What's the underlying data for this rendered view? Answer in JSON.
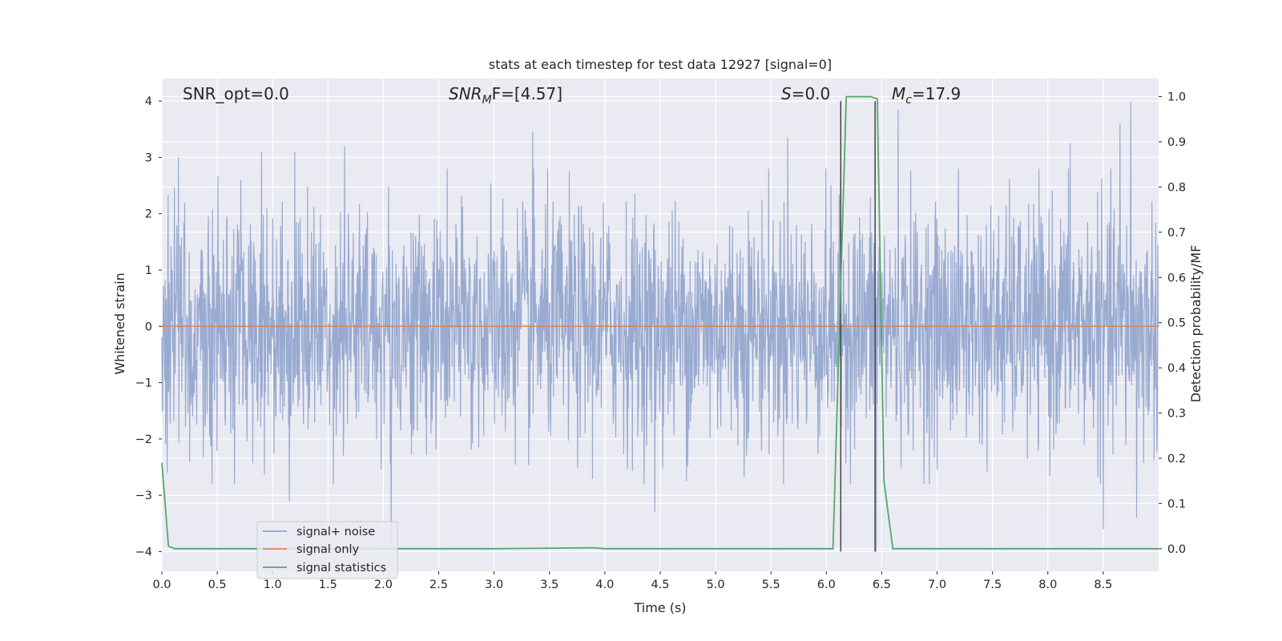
{
  "chart_data": {
    "type": "line",
    "title": "stats at each timestep for test data 12927 [signal=0]",
    "xlabel": "Time (s)",
    "ylabel_left": "Whitened strain",
    "ylabel_right": "Detection probability/MF",
    "xlim": [
      0.0,
      9.0
    ],
    "ylim_left": [
      -4.35,
      4.4
    ],
    "ylim_right": [
      -0.05,
      1.04
    ],
    "x_ticks": [
      "0.0",
      "0.5",
      "1.0",
      "1.5",
      "2.0",
      "2.5",
      "3.0",
      "3.5",
      "4.0",
      "4.5",
      "5.0",
      "5.5",
      "6.0",
      "6.5",
      "7.0",
      "7.5",
      "8.0",
      "8.5"
    ],
    "y_ticks_left": [
      "−4",
      "−3",
      "−2",
      "−1",
      "0",
      "1",
      "2",
      "3",
      "4"
    ],
    "y_ticks_right": [
      "0.0",
      "0.1",
      "0.2",
      "0.3",
      "0.4",
      "0.5",
      "0.6",
      "0.7",
      "0.8",
      "0.9",
      "1.0"
    ],
    "grid": true,
    "legend_position": "lower-left",
    "annotations": {
      "snr_opt": "SNR_opt=0.0",
      "snr_mf_base": "SNR",
      "snr_mf_sub": "M",
      "snr_mf_tail": "F=[4.57]",
      "s_symbol": "S",
      "s_value": "=0.0",
      "mc_symbol": "M",
      "mc_sub": "c",
      "mc_value": "=17.9"
    },
    "series": [
      {
        "name": "signal+ noise",
        "color": "#8fa3cc",
        "axis": "left",
        "description_values": "dense whitened noise, approx ±2.5 with spikes to ±4",
        "envelope_upper_peaks": [
          [
            0.15,
            3.0
          ],
          [
            0.9,
            3.1
          ],
          [
            1.2,
            3.1
          ],
          [
            1.65,
            3.2
          ],
          [
            3.35,
            3.45
          ],
          [
            5.65,
            3.35
          ],
          [
            6.65,
            3.85
          ],
          [
            8.2,
            3.25
          ],
          [
            8.65,
            3.6
          ],
          [
            8.75,
            4.0
          ]
        ],
        "envelope_lower_peaks": [
          [
            0.05,
            -2.6
          ],
          [
            1.15,
            -3.1
          ],
          [
            2.07,
            -3.9
          ],
          [
            4.45,
            -3.3
          ],
          [
            6.45,
            -4.0
          ],
          [
            8.5,
            -3.6
          ],
          [
            8.8,
            -3.4
          ]
        ]
      },
      {
        "name": "signal only",
        "color": "#dd8452",
        "axis": "left",
        "x": [
          0.0,
          9.0
        ],
        "y": [
          0.0,
          0.0
        ]
      },
      {
        "name": "signal statistics",
        "color": "#55a868",
        "axis": "right",
        "x": [
          0.0,
          0.06,
          0.12,
          1.0,
          2.0,
          3.0,
          3.9,
          4.0,
          5.0,
          6.0,
          6.06,
          6.18,
          6.25,
          6.4,
          6.46,
          6.52,
          6.6,
          7.0,
          8.0,
          9.0
        ],
        "y": [
          0.19,
          0.005,
          0.0,
          0.0,
          0.0,
          0.0,
          0.002,
          0.0,
          0.0,
          0.0,
          0.0,
          1.0,
          1.0,
          1.0,
          0.995,
          0.15,
          0.0,
          0.0,
          0.0,
          0.0
        ]
      }
    ],
    "vertical_lines": [
      6.13,
      6.44
    ]
  }
}
